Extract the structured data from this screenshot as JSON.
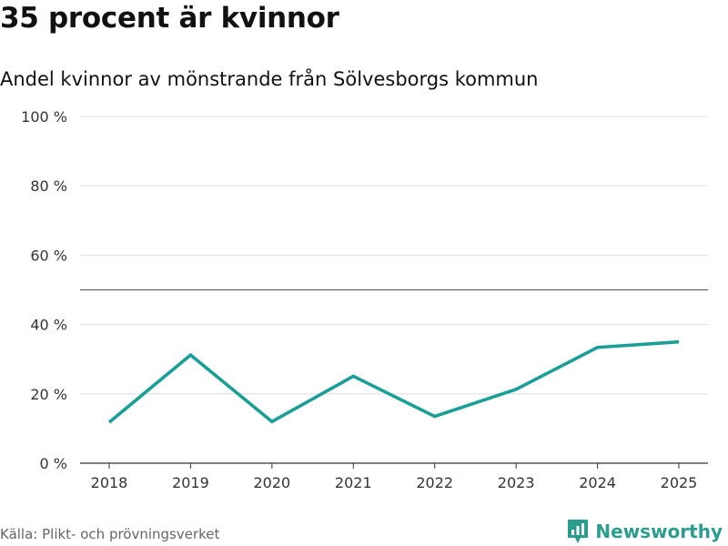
{
  "header": {
    "title": "35 procent är kvinnor",
    "subtitle": "Andel kvinnor av mönstrande från Sölvesborgs kommun"
  },
  "footer": {
    "source": "Källa: Plikt- och prövningsverket",
    "brand": "Newsworthy"
  },
  "colors": {
    "line": "#1a9e96",
    "grid": "#dddddd",
    "reference": "#666666",
    "brand": "#2a9d8f"
  },
  "icons": {
    "brand_logo": "newsworthy-chat-bar-icon"
  },
  "chart_data": {
    "type": "line",
    "title": "35 procent är kvinnor",
    "subtitle": "Andel kvinnor av mönstrande från Sölvesborgs kommun",
    "xlabel": "",
    "ylabel": "",
    "categories": [
      "2018",
      "2019",
      "2020",
      "2021",
      "2022",
      "2023",
      "2024",
      "2025"
    ],
    "series": [
      {
        "name": "Andel kvinnor",
        "values": [
          11.8,
          31.2,
          12.0,
          25.1,
          13.5,
          21.3,
          33.4,
          35.0
        ]
      }
    ],
    "ylim": [
      0,
      100
    ],
    "yticks": [
      0,
      20,
      40,
      60,
      80,
      100
    ],
    "ytick_labels": [
      "0 %",
      "20 %",
      "40 %",
      "60 %",
      "80 %",
      "100 %"
    ],
    "reference_line": 50,
    "grid": true,
    "legend": "none"
  }
}
